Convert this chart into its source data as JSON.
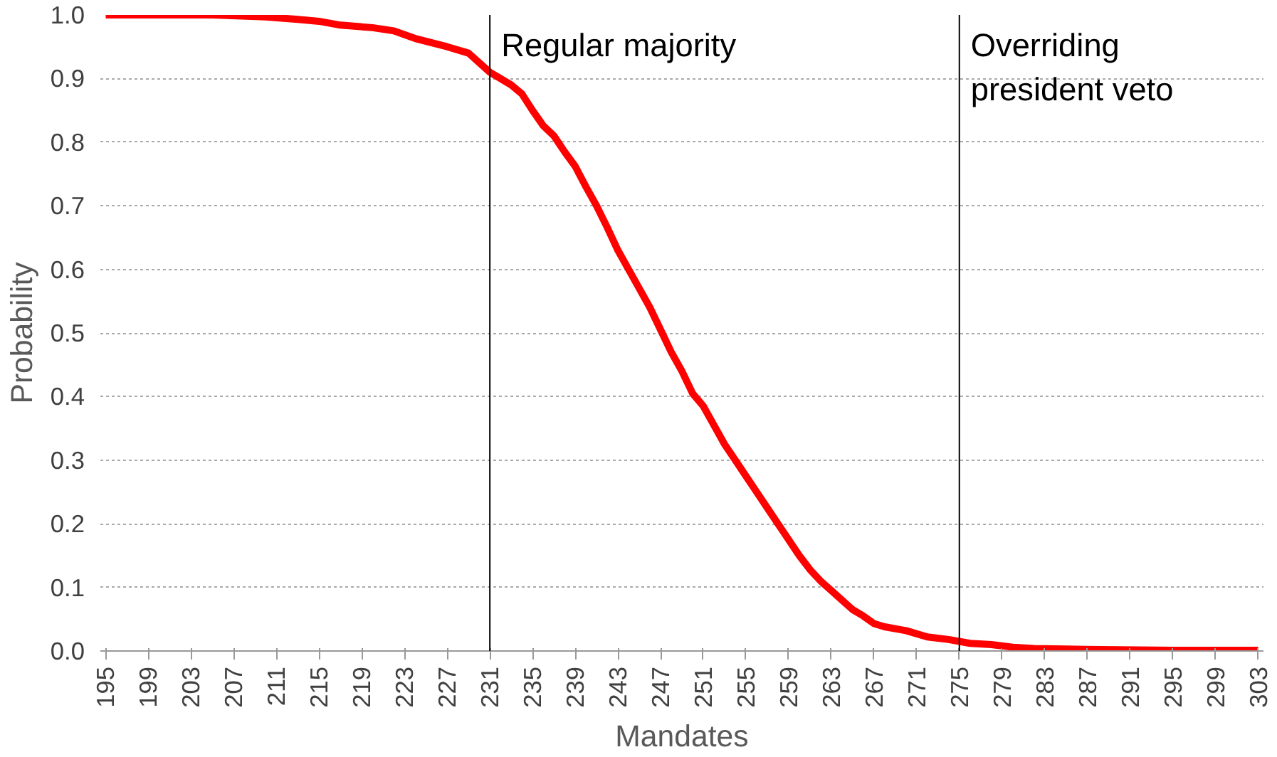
{
  "chart_data": {
    "type": "line",
    "xlabel": "Mandates",
    "ylabel": "Probability",
    "x": [
      195,
      205,
      210,
      213,
      215,
      217,
      220,
      222,
      224,
      227,
      229,
      231,
      233,
      234,
      235,
      236,
      237,
      238,
      239,
      240,
      241,
      242,
      243,
      244,
      245,
      246,
      247,
      248,
      249,
      250,
      251,
      252,
      253,
      254,
      255,
      256,
      257,
      258,
      259,
      260,
      261,
      262,
      263,
      264,
      265,
      266,
      267,
      268,
      270,
      272,
      274,
      276,
      278,
      280,
      282,
      285,
      290,
      295,
      303
    ],
    "series": [
      {
        "color": "#ff0000",
        "values": [
          1.0,
          1.0,
          0.997,
          0.993,
          0.99,
          0.984,
          0.98,
          0.975,
          0.963,
          0.95,
          0.94,
          0.91,
          0.89,
          0.876,
          0.85,
          0.826,
          0.81,
          0.785,
          0.762,
          0.73,
          0.7,
          0.666,
          0.63,
          0.6,
          0.57,
          0.54,
          0.505,
          0.47,
          0.44,
          0.405,
          0.385,
          0.355,
          0.325,
          0.3,
          0.275,
          0.25,
          0.225,
          0.2,
          0.175,
          0.15,
          0.128,
          0.11,
          0.095,
          0.08,
          0.065,
          0.055,
          0.043,
          0.038,
          0.032,
          0.022,
          0.018,
          0.012,
          0.01,
          0.006,
          0.004,
          0.003,
          0.002,
          0.001,
          0.001
        ]
      }
    ],
    "xlim": [
      194.5,
      303.5
    ],
    "xticks": [
      195,
      199,
      203,
      207,
      211,
      215,
      219,
      223,
      227,
      231,
      235,
      239,
      243,
      247,
      251,
      255,
      259,
      263,
      267,
      271,
      275,
      279,
      283,
      287,
      291,
      295,
      299,
      303
    ],
    "ylim": [
      0,
      1
    ],
    "yticks": [
      {
        "value": 0,
        "label": "0.0"
      },
      {
        "value": 0.1,
        "label": "0.1"
      },
      {
        "value": 0.2,
        "label": "0.2"
      },
      {
        "value": 0.3,
        "label": "0.3"
      },
      {
        "value": 0.4,
        "label": "0.4"
      },
      {
        "value": 0.5,
        "label": "0.5"
      },
      {
        "value": 0.6,
        "label": "0.6"
      },
      {
        "value": 0.7,
        "label": "0.7"
      },
      {
        "value": 0.8,
        "label": "0.8"
      },
      {
        "value": 0.9,
        "label": "0.9"
      },
      {
        "value": 1,
        "label": "1.0"
      }
    ],
    "grid": "y",
    "marker": "none",
    "line_style": "solid",
    "ref_lines": [
      {
        "axis": "x",
        "value": 231,
        "label": "Regular majority",
        "color": "#000000"
      },
      {
        "axis": "x",
        "value": 275,
        "label": "Overriding\npresident veto",
        "color": "#000000"
      }
    ]
  }
}
